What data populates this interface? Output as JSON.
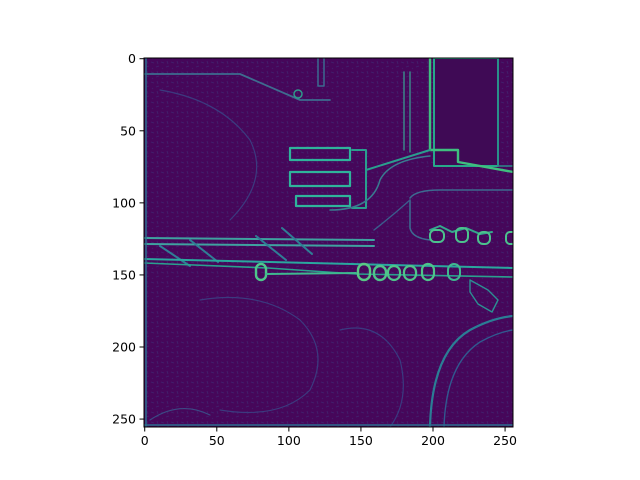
{
  "chart_data": {
    "type": "heatmap",
    "title": "",
    "xlabel": "",
    "ylabel": "",
    "image_size": [
      256,
      256
    ],
    "xlim": [
      -0.5,
      255.5
    ],
    "ylim": [
      255.5,
      -0.5
    ],
    "x_ticks": [
      0,
      50,
      100,
      150,
      200,
      250
    ],
    "y_ticks": [
      0,
      50,
      100,
      150,
      200,
      250
    ],
    "colormap": "viridis",
    "colors": {
      "background": "#440154",
      "mid": "#3b528b",
      "edge": "#21918c",
      "strong_edge": "#5ec962"
    },
    "grid": false,
    "legend": "none"
  }
}
